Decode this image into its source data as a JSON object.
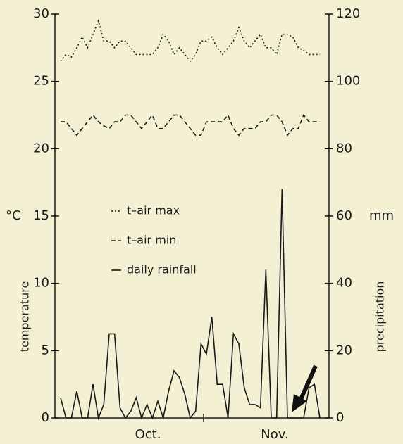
{
  "chart_data": {
    "type": "line",
    "x_labels": [
      "Oct.",
      "Nov."
    ],
    "y_label": "temperature",
    "y_unit": "°C",
    "y2_label": "precipitation",
    "y2_unit": "mm",
    "ylim": [
      0,
      30
    ],
    "yticks": [
      0,
      5,
      10,
      15,
      20,
      25,
      30
    ],
    "y2lim": [
      0,
      120
    ],
    "y2ticks": [
      0,
      20,
      40,
      60,
      80,
      100,
      120
    ],
    "color": "#1a1a1a",
    "series": [
      {
        "name": "t–air max",
        "line_style": "dotted",
        "values": [
          26.5,
          27,
          26.8,
          27.5,
          28.3,
          27.5,
          28.5,
          29.5,
          28,
          28,
          27.5,
          28,
          28,
          27.5,
          27,
          27,
          27,
          27,
          27.5,
          28.5,
          28,
          27,
          27.5,
          27,
          26.5,
          27,
          28,
          28,
          28.3,
          27.5,
          27,
          27.5,
          28,
          29,
          28,
          27.5,
          28,
          28.5,
          27.5,
          27.5,
          27,
          28.5,
          28.5,
          28.3,
          27.5,
          27.3,
          27,
          27,
          27
        ]
      },
      {
        "name": "t–air min",
        "line_style": "dashed",
        "values": [
          22,
          22,
          21.5,
          21,
          21.5,
          22,
          22.5,
          22,
          21.7,
          21.5,
          22,
          22,
          22.5,
          22.5,
          22,
          21.5,
          22,
          22.5,
          21.5,
          21.5,
          22,
          22.5,
          22.5,
          22,
          21.5,
          21,
          21,
          22,
          22,
          22,
          22,
          22.5,
          21.5,
          21,
          21.5,
          21.5,
          21.5,
          22,
          22,
          22.5,
          22.5,
          22,
          21,
          21.5,
          21.5,
          22.5,
          22,
          22,
          22
        ]
      },
      {
        "name": "daily rainfall",
        "line_style": "solid",
        "axis": "y2",
        "values": [
          6,
          0,
          0,
          8,
          0,
          0,
          10,
          0,
          4,
          25,
          25,
          3,
          0,
          2,
          6,
          0,
          4,
          0,
          5,
          0,
          8,
          14,
          12,
          7,
          0,
          2,
          22,
          19,
          30,
          10,
          10,
          0,
          25,
          22,
          9,
          4,
          4,
          3,
          44,
          0,
          0,
          68,
          0,
          0,
          0,
          0,
          9,
          10,
          0
        ]
      }
    ]
  }
}
